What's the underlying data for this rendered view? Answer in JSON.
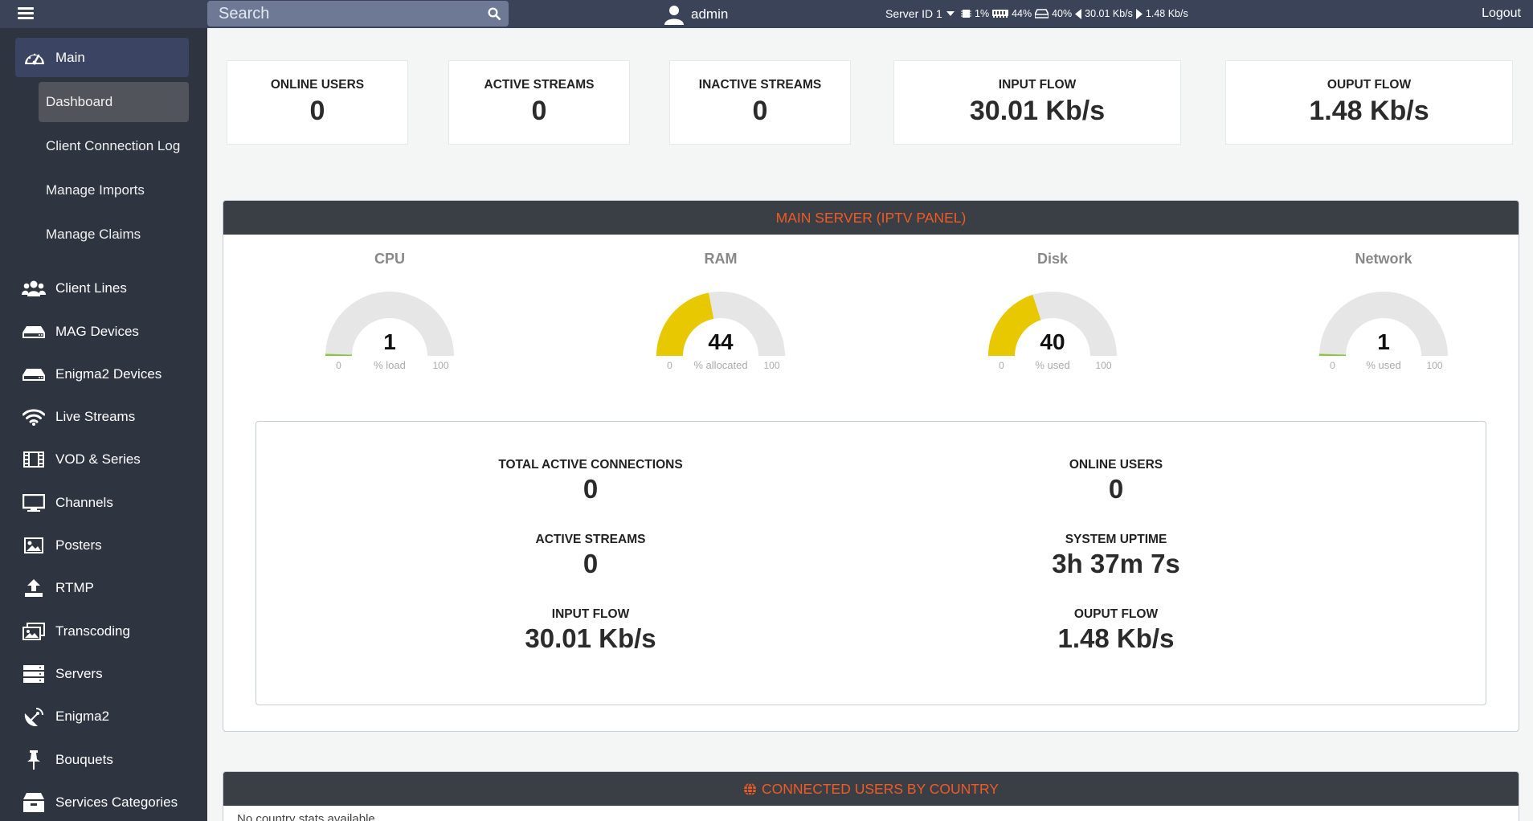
{
  "topbar": {
    "search_placeholder": "Search",
    "user_name": "admin",
    "server_id": "Server ID 1",
    "cpu": "1%",
    "ram": "44%",
    "disk": "40%",
    "input_rate": "30.01 Kb/s",
    "output_rate": "1.48 Kb/s",
    "logout": "Logout"
  },
  "sidebar": {
    "main": "Main",
    "sub_items": [
      "Dashboard",
      "Client Connection Log",
      "Manage Imports",
      "Manage Claims"
    ],
    "items": [
      {
        "label": "Client Lines",
        "icon": "users-icon"
      },
      {
        "label": "MAG Devices",
        "icon": "device-icon"
      },
      {
        "label": "Enigma2 Devices",
        "icon": "device-icon"
      },
      {
        "label": "Live Streams",
        "icon": "wifi-icon"
      },
      {
        "label": "VOD & Series",
        "icon": "film-icon"
      },
      {
        "label": "Channels",
        "icon": "monitor-icon"
      },
      {
        "label": "Posters",
        "icon": "image-icon"
      },
      {
        "label": "RTMP",
        "icon": "upload-icon"
      },
      {
        "label": "Transcoding",
        "icon": "images-icon"
      },
      {
        "label": "Servers",
        "icon": "servers-icon"
      },
      {
        "label": "Enigma2",
        "icon": "satellite-icon"
      },
      {
        "label": "Bouquets",
        "icon": "pin-icon"
      },
      {
        "label": "Services Categories",
        "icon": "box-icon"
      }
    ]
  },
  "cards": [
    {
      "label": "ONLINE USERS",
      "value": "0"
    },
    {
      "label": "ACTIVE STREAMS",
      "value": "0"
    },
    {
      "label": "INACTIVE STREAMS",
      "value": "0"
    },
    {
      "label": "INPUT FLOW",
      "value": "30.01 Kb/s"
    },
    {
      "label": "OUPUT FLOW",
      "value": "1.48 Kb/s"
    }
  ],
  "server_panel": {
    "title": "MAIN SERVER (IPTV PANEL)",
    "gauges": [
      {
        "title": "CPU",
        "value": 1,
        "unit": "% load",
        "min": "0",
        "max": "100",
        "color": "#8cc63f"
      },
      {
        "title": "RAM",
        "value": 44,
        "unit": "% allocated",
        "min": "0",
        "max": "100",
        "color": "#e8c800"
      },
      {
        "title": "Disk",
        "value": 40,
        "unit": "% used",
        "min": "0",
        "max": "100",
        "color": "#e8c800"
      },
      {
        "title": "Network",
        "value": 1,
        "unit": "% used",
        "min": "0",
        "max": "100",
        "color": "#8cc63f"
      }
    ],
    "metrics": {
      "total_active_connections": {
        "label": "TOTAL ACTIVE CONNECTIONS",
        "value": "0"
      },
      "online_users": {
        "label": "ONLINE USERS",
        "value": "0"
      },
      "active_streams": {
        "label": "ACTIVE STREAMS",
        "value": "0"
      },
      "system_uptime": {
        "label": "SYSTEM UPTIME",
        "value": "3h 37m 7s"
      },
      "input_flow": {
        "label": "INPUT FLOW",
        "value": "30.01 Kb/s"
      },
      "output_flow": {
        "label": "OUPUT FLOW",
        "value": "1.48 Kb/s"
      }
    }
  },
  "country_panel": {
    "title": "CONNECTED USERS BY COUNTRY",
    "note": "No country stats available"
  }
}
